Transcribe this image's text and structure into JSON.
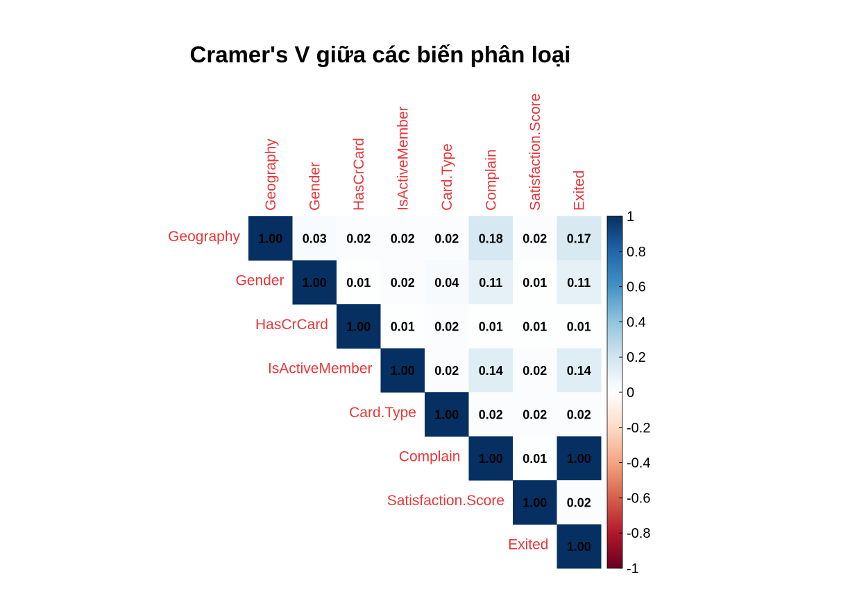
{
  "chart_data": {
    "type": "heatmap",
    "title": "Cramer's V giữa các biến phân loại",
    "variables": [
      "Geography",
      "Gender",
      "HasCrCard",
      "IsActiveMember",
      "Card.Type",
      "Complain",
      "Satisfaction.Score",
      "Exited"
    ],
    "matrix": [
      [
        1.0,
        0.03,
        0.02,
        0.02,
        0.02,
        0.18,
        0.02,
        0.17
      ],
      [
        null,
        1.0,
        0.01,
        0.02,
        0.04,
        0.11,
        0.01,
        0.11
      ],
      [
        null,
        null,
        1.0,
        0.01,
        0.02,
        0.01,
        0.01,
        0.01
      ],
      [
        null,
        null,
        null,
        1.0,
        0.02,
        0.14,
        0.02,
        0.14
      ],
      [
        null,
        null,
        null,
        null,
        1.0,
        0.02,
        0.02,
        0.02
      ],
      [
        null,
        null,
        null,
        null,
        null,
        1.0,
        0.01,
        1.0
      ],
      [
        null,
        null,
        null,
        null,
        null,
        null,
        1.0,
        0.02
      ],
      [
        null,
        null,
        null,
        null,
        null,
        null,
        null,
        1.0
      ]
    ],
    "display_type": "upper",
    "value_format": "0.00",
    "colorbar": {
      "range": [
        -1,
        1
      ],
      "ticks": [
        "1",
        "0.8",
        "0.6",
        "0.4",
        "0.2",
        "0",
        "-0.2",
        "-0.4",
        "-0.6",
        "-0.8",
        "-1"
      ],
      "colors": {
        "negative": "#67001F",
        "neutral": "#FFFFFF",
        "positive": "#053061"
      }
    },
    "label_color": "#E8373A",
    "legend_position": "right"
  }
}
